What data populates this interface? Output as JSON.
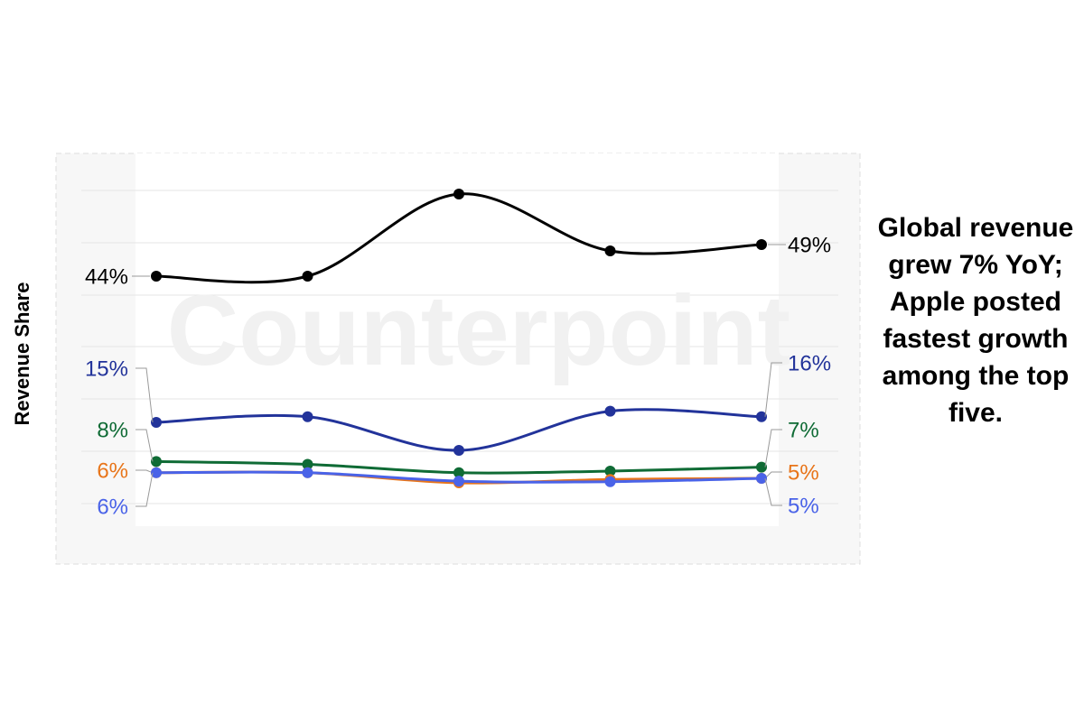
{
  "chart_data": {
    "type": "line",
    "ylabel": "Revenue Share",
    "watermark": "Counterpoint",
    "annotation": "Global revenue grew 7% YoY; Apple posted fastest growth among the top five.",
    "categories": [
      null,
      null,
      null,
      null,
      null
    ],
    "ylim": [
      40,
      58
    ],
    "y2lim": [
      0,
      20
    ],
    "series": [
      {
        "color": "#000000",
        "values": [
          44,
          44,
          57,
          48,
          49
        ],
        "value_labels": [
          "44%",
          null,
          null,
          null,
          "49%"
        ]
      },
      {
        "color": "#22339a",
        "axis": "y2",
        "values": [
          15,
          16,
          10,
          17,
          16
        ],
        "value_labels": [
          "15%",
          null,
          null,
          null,
          "16%"
        ]
      },
      {
        "color": "#0f6b35",
        "axis": "y2",
        "values": [
          8,
          7.5,
          6,
          6.3,
          7
        ],
        "value_labels": [
          "8%",
          null,
          null,
          null,
          "7%"
        ]
      },
      {
        "color": "#e8751a",
        "axis": "y2",
        "values": [
          6,
          6,
          4.2,
          4.8,
          5
        ],
        "value_labels": [
          "6%",
          null,
          null,
          null,
          "5%"
        ]
      },
      {
        "color": "#4a63e8",
        "axis": "y2",
        "values": [
          6,
          6,
          4.5,
          4.4,
          5
        ],
        "value_labels": [
          "6%",
          null,
          null,
          null,
          "5%"
        ]
      }
    ]
  }
}
